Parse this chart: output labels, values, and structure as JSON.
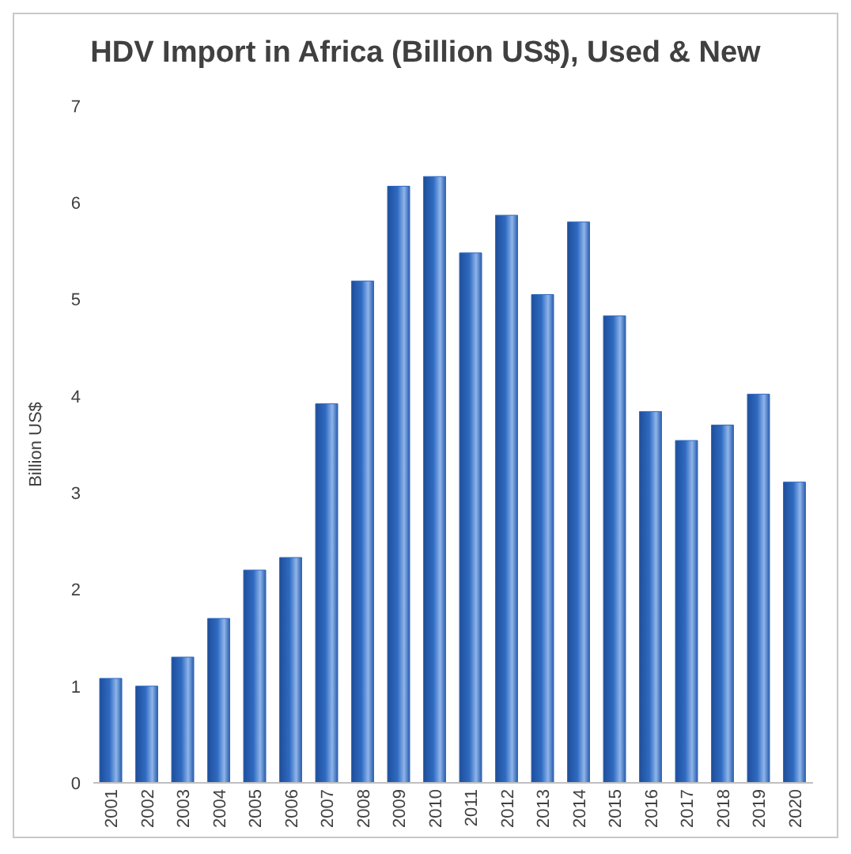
{
  "chart_data": {
    "type": "bar",
    "title": "HDV Import in Africa (Billion US$), Used & New",
    "ylabel": "Billion US$",
    "categories": [
      "2001",
      "2002",
      "2003",
      "2004",
      "2005",
      "2006",
      "2007",
      "2008",
      "2009",
      "2010",
      "2011",
      "2012",
      "2013",
      "2014",
      "2015",
      "2016",
      "2017",
      "2018",
      "2019",
      "2020"
    ],
    "values": [
      1.08,
      1.0,
      1.3,
      1.7,
      2.2,
      2.33,
      3.92,
      5.19,
      6.17,
      6.27,
      5.48,
      5.87,
      5.05,
      5.8,
      4.83,
      3.84,
      3.54,
      3.7,
      4.02,
      3.11
    ],
    "color": "#2f6bc2",
    "ylim": [
      0,
      7
    ],
    "yticks": [
      0,
      1,
      2,
      3,
      4,
      5,
      6,
      7
    ],
    "grid": false
  }
}
